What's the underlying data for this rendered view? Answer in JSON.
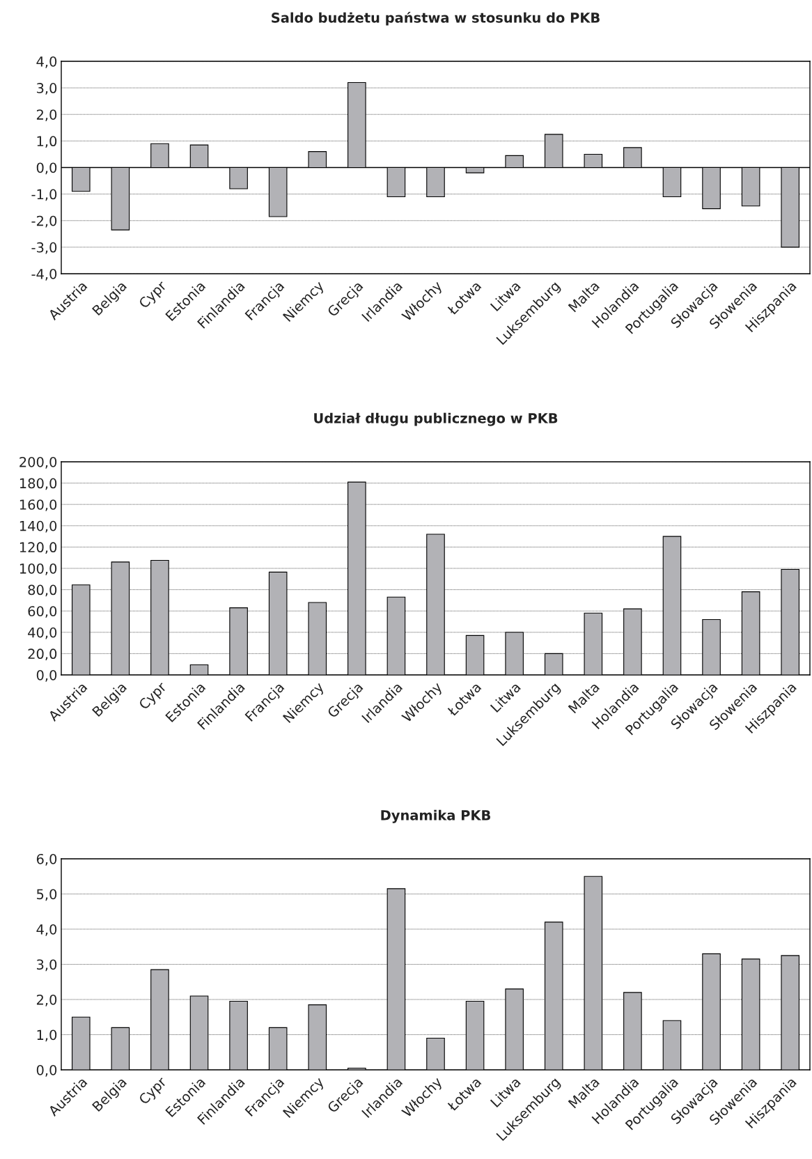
{
  "chart_data": [
    {
      "type": "bar",
      "title": "Saldo budżetu państwa w stosunku do PKB",
      "categories": [
        "Austria",
        "Belgia",
        "Cypr",
        "Estonia",
        "Finlandia",
        "Francja",
        "Niemcy",
        "Grecja",
        "Irlandia",
        "Włochy",
        "Łotwa",
        "Litwa",
        "Luksemburg",
        "Malta",
        "Holandia",
        "Portugalia",
        "Słowacja",
        "Słowenia",
        "Hiszpania"
      ],
      "values": [
        -0.9,
        -2.35,
        0.9,
        0.85,
        -0.8,
        -1.85,
        0.6,
        3.2,
        -1.1,
        -1.1,
        -0.2,
        0.45,
        1.25,
        0.5,
        0.75,
        -1.1,
        -1.55,
        -1.45,
        -3.0
      ],
      "color": "#b2b2b6",
      "ylim": [
        -4,
        4
      ],
      "yticks": [
        {
          "value": -4,
          "label": "-4,0"
        },
        {
          "value": -3,
          "label": "-3,0"
        },
        {
          "value": -2,
          "label": "-2,0"
        },
        {
          "value": -1,
          "label": "-1,0"
        },
        {
          "value": 0,
          "label": "0,0"
        },
        {
          "value": 1,
          "label": "1,0"
        },
        {
          "value": 2,
          "label": "2,0"
        },
        {
          "value": 3,
          "label": "3,0"
        },
        {
          "value": 4,
          "label": "4,0"
        }
      ],
      "ref_lines": [
        {
          "axis": "y",
          "value": 0,
          "color": "#000000"
        }
      ],
      "grid": "y"
    },
    {
      "type": "bar",
      "title": "Udział długu publicznego w PKB",
      "categories": [
        "Austria",
        "Belgia",
        "Cypr",
        "Estonia",
        "Finlandia",
        "Francja",
        "Niemcy",
        "Grecja",
        "Irlandia",
        "Włochy",
        "Łotwa",
        "Litwa",
        "Luksemburg",
        "Malta",
        "Holandia",
        "Portugalia",
        "Słowacja",
        "Słowenia",
        "Hiszpania"
      ],
      "values": [
        84.5,
        106,
        107.5,
        9.5,
        63,
        96.5,
        68,
        181,
        73,
        132,
        37,
        40,
        20,
        58,
        62,
        130,
        52,
        78,
        99
      ],
      "color": "#b2b2b6",
      "ylim": [
        0,
        200
      ],
      "yticks": [
        {
          "value": 0,
          "label": "0,0"
        },
        {
          "value": 20,
          "label": "20,0"
        },
        {
          "value": 40,
          "label": "40,0"
        },
        {
          "value": 60,
          "label": "60,0"
        },
        {
          "value": 80,
          "label": "80,0"
        },
        {
          "value": 100,
          "label": "100,0"
        },
        {
          "value": 120,
          "label": "120,0"
        },
        {
          "value": 140,
          "label": "140,0"
        },
        {
          "value": 160,
          "label": "160,0"
        },
        {
          "value": 180,
          "label": "180,0"
        },
        {
          "value": 200,
          "label": "200,0"
        }
      ],
      "grid": "y"
    },
    {
      "type": "bar",
      "title": "Dynamika PKB",
      "categories": [
        "Austria",
        "Belgia",
        "Cypr",
        "Estonia",
        "Finlandia",
        "Francja",
        "Niemcy",
        "Grecja",
        "Irlandia",
        "Włochy",
        "Łotwa",
        "Litwa",
        "Luksemburg",
        "Malta",
        "Holandia",
        "Portugalia",
        "Słowacja",
        "Słowenia",
        "Hiszpania"
      ],
      "values": [
        1.5,
        1.2,
        2.85,
        2.1,
        1.95,
        1.2,
        1.85,
        0.05,
        5.15,
        0.9,
        1.95,
        2.3,
        4.2,
        5.5,
        2.2,
        1.4,
        3.3,
        3.15,
        3.25
      ],
      "color": "#b2b2b6",
      "ylim": [
        0,
        6
      ],
      "yticks": [
        {
          "value": 0,
          "label": "0,0"
        },
        {
          "value": 1,
          "label": "1,0"
        },
        {
          "value": 2,
          "label": "2,0"
        },
        {
          "value": 3,
          "label": "3,0"
        },
        {
          "value": 4,
          "label": "4,0"
        },
        {
          "value": 5,
          "label": "5,0"
        },
        {
          "value": 6,
          "label": "6,0"
        }
      ],
      "grid": "y"
    }
  ]
}
